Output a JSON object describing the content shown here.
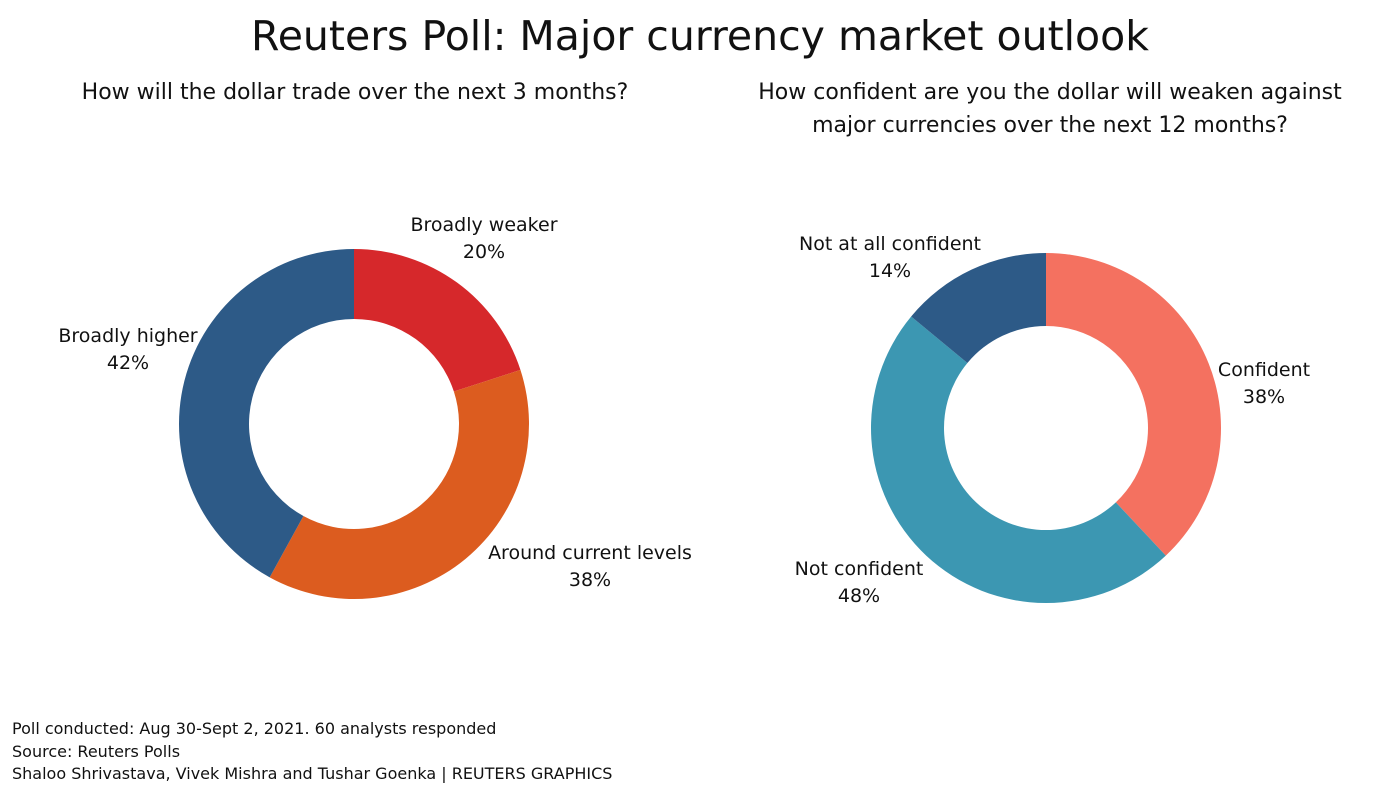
{
  "title": "Reuters Poll: Major currency market outlook",
  "chart_data": [
    {
      "type": "pie",
      "donut": true,
      "title": "How will the dollar trade over the next 3 months?",
      "categories": [
        "Broadly weaker",
        "Around current levels",
        "Broadly higher"
      ],
      "values": [
        20,
        38,
        42
      ],
      "value_labels": [
        "20%",
        "38%",
        "42%"
      ],
      "colors": [
        "#D6282B",
        "#DC5C1F",
        "#2D5A87"
      ]
    },
    {
      "type": "pie",
      "donut": true,
      "title": "How confident are you the dollar will weaken against major currencies over the next 12 months?",
      "categories": [
        "Confident",
        "Not confident",
        "Not at all confident"
      ],
      "values": [
        38,
        48,
        14
      ],
      "value_labels": [
        "38%",
        "48%",
        "14%"
      ],
      "colors": [
        "#F47160",
        "#3C97B2",
        "#2D5A87"
      ]
    }
  ],
  "footer": {
    "line1": "Poll conducted: Aug 30-Sept 2, 2021. 60 analysts responded",
    "line2": "Source: Reuters Polls",
    "line3": "Shaloo Shrivastava, Vivek Mishra and Tushar Goenka | REUTERS GRAPHICS"
  }
}
